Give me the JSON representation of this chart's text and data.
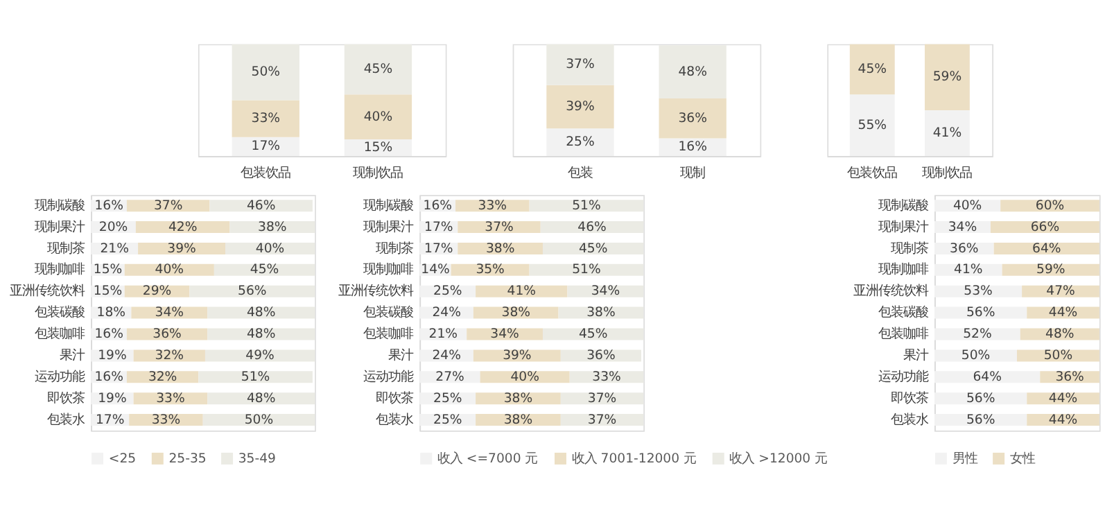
{
  "chart_data": [
    {
      "type": "bar",
      "stacked": true,
      "categories": [
        "包装饮品",
        "现制饮品"
      ],
      "series": [
        {
          "color": "#f2f2f2",
          "values": [
            17,
            15
          ],
          "value_labels": [
            "17%",
            "15%"
          ]
        },
        {
          "color": "#ecdfc4",
          "values": [
            33,
            40
          ],
          "value_labels": [
            "33%",
            "40%"
          ]
        },
        {
          "color": "#ebebe4",
          "values": [
            50,
            45
          ],
          "value_labels": [
            "50%",
            "45%"
          ]
        }
      ]
    },
    {
      "type": "bar",
      "stacked": true,
      "categories": [
        "包装",
        "现制"
      ],
      "series": [
        {
          "color": "#f2f2f2",
          "values": [
            25,
            16
          ],
          "value_labels": [
            "25%",
            "16%"
          ]
        },
        {
          "color": "#ecdfc4",
          "values": [
            39,
            36
          ],
          "value_labels": [
            "39%",
            "36%"
          ]
        },
        {
          "color": "#ebebe4",
          "values": [
            37,
            48
          ],
          "value_labels": [
            "37%",
            "48%"
          ]
        }
      ]
    },
    {
      "type": "bar",
      "stacked": true,
      "categories": [
        "包装饮品",
        "现制饮品"
      ],
      "series": [
        {
          "color": "#f2f2f2",
          "values": [
            55,
            41
          ],
          "value_labels": [
            "55%",
            "41%"
          ]
        },
        {
          "color": "#ecdfc4",
          "values": [
            45,
            59
          ],
          "value_labels": [
            "45%",
            "59%"
          ]
        }
      ]
    },
    {
      "type": "bar",
      "stacked": true,
      "orientation": "horizontal",
      "legend": "bottom",
      "categories": [
        "现制碳酸",
        "现制果汁",
        "现制茶",
        "现制咖啡",
        "亚洲传统饮料",
        "包装碳酸",
        "包装咖啡",
        "果汁",
        "运动功能",
        "即饮茶",
        "包装水"
      ],
      "series": [
        {
          "name": "<25",
          "color": "#f2f2f2",
          "values": [
            16,
            20,
            21,
            15,
            15,
            18,
            16,
            19,
            16,
            19,
            17
          ],
          "value_labels": [
            "16%",
            "20%",
            "21%",
            "15%",
            "15%",
            "18%",
            "16%",
            "19%",
            "16%",
            "19%",
            "17%"
          ]
        },
        {
          "name": "25-35",
          "color": "#ecdfc4",
          "values": [
            37,
            42,
            39,
            40,
            29,
            34,
            36,
            32,
            32,
            33,
            33
          ],
          "value_labels": [
            "37%",
            "42%",
            "39%",
            "40%",
            "29%",
            "34%",
            "36%",
            "32%",
            "32%",
            "33%",
            "33%"
          ]
        },
        {
          "name": "35-49",
          "color": "#ebebe4",
          "values": [
            46,
            38,
            40,
            45,
            56,
            48,
            48,
            49,
            51,
            48,
            50
          ],
          "value_labels": [
            "46%",
            "38%",
            "40%",
            "45%",
            "56%",
            "48%",
            "48%",
            "49%",
            "51%",
            "48%",
            "50%"
          ]
        }
      ]
    },
    {
      "type": "bar",
      "stacked": true,
      "orientation": "horizontal",
      "legend": "bottom",
      "categories": [
        "现制碳酸",
        "现制果汁",
        "现制茶",
        "现制咖啡",
        "亚洲传统饮料",
        "包装碳酸",
        "包装咖啡",
        "果汁",
        "运动功能",
        "即饮茶",
        "包装水"
      ],
      "series": [
        {
          "name": "收入 <=7000 元",
          "color": "#f2f2f2",
          "values": [
            16,
            17,
            17,
            14,
            25,
            24,
            21,
            24,
            27,
            25,
            25
          ],
          "value_labels": [
            "16%",
            "17%",
            "17%",
            "14%",
            "25%",
            "24%",
            "21%",
            "24%",
            "27%",
            "25%",
            "25%"
          ]
        },
        {
          "name": "收入 7001-12000 元",
          "color": "#ecdfc4",
          "values": [
            33,
            37,
            38,
            35,
            41,
            38,
            34,
            39,
            40,
            38,
            38
          ],
          "value_labels": [
            "33%",
            "37%",
            "38%",
            "35%",
            "41%",
            "38%",
            "34%",
            "39%",
            "40%",
            "38%",
            "38%"
          ]
        },
        {
          "name": "收入 >12000 元",
          "color": "#ebebe4",
          "values": [
            51,
            46,
            45,
            51,
            34,
            38,
            45,
            36,
            33,
            37,
            37
          ],
          "value_labels": [
            "51%",
            "46%",
            "45%",
            "51%",
            "34%",
            "38%",
            "45%",
            "36%",
            "33%",
            "37%",
            "37%"
          ]
        }
      ]
    },
    {
      "type": "bar",
      "stacked": true,
      "orientation": "horizontal",
      "legend": "bottom",
      "categories": [
        "现制碳酸",
        "现制果汁",
        "现制茶",
        "现制咖啡",
        "亚洲传统饮料",
        "包装碳酸",
        "包装咖啡",
        "果汁",
        "运动功能",
        "即饮茶",
        "包装水"
      ],
      "series": [
        {
          "name": "男性",
          "color": "#f2f2f2",
          "values": [
            40,
            34,
            36,
            41,
            53,
            56,
            52,
            50,
            64,
            56,
            56
          ],
          "value_labels": [
            "40%",
            "34%",
            "36%",
            "41%",
            "53%",
            "56%",
            "52%",
            "50%",
            "64%",
            "56%",
            "56%"
          ]
        },
        {
          "name": "女性",
          "color": "#ecdfc4",
          "values": [
            60,
            66,
            64,
            59,
            47,
            44,
            48,
            50,
            36,
            44,
            44
          ],
          "value_labels": [
            "60%",
            "66%",
            "64%",
            "59%",
            "47%",
            "44%",
            "48%",
            "50%",
            "36%",
            "44%",
            "44%"
          ]
        }
      ]
    }
  ]
}
